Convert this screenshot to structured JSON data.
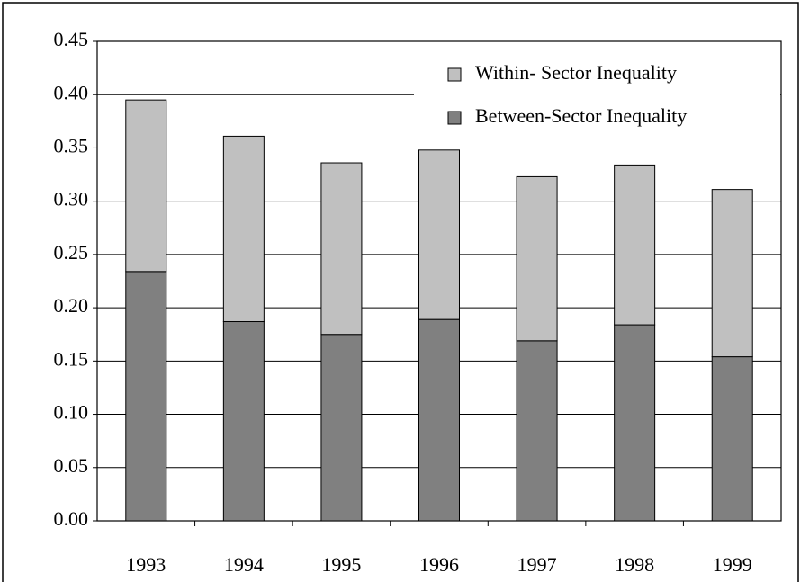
{
  "chart_data": {
    "type": "stacked_bar",
    "categories": [
      "1993",
      "1994",
      "1995",
      "1996",
      "1997",
      "1998",
      "1999"
    ],
    "series": [
      {
        "name": "Between-Sector Inequality",
        "color": "#808080",
        "values": [
          0.234,
          0.187,
          0.175,
          0.189,
          0.169,
          0.184,
          0.154
        ]
      },
      {
        "name": "Within- Sector Inequality",
        "color": "#c0c0c0",
        "values": [
          0.161,
          0.174,
          0.161,
          0.159,
          0.154,
          0.15,
          0.157
        ]
      }
    ],
    "ylim": [
      0,
      0.45
    ],
    "yticks": [
      {
        "value": 0,
        "label": "0.00"
      },
      {
        "value": 0.05,
        "label": "0.05"
      },
      {
        "value": 0.1,
        "label": "0.10"
      },
      {
        "value": 0.15,
        "label": "0.15"
      },
      {
        "value": 0.2,
        "label": "0.20"
      },
      {
        "value": 0.25,
        "label": "0.25"
      },
      {
        "value": 0.3,
        "label": "0.30"
      },
      {
        "value": 0.35,
        "label": "0.35"
      },
      {
        "value": 0.4,
        "label": "0.40"
      },
      {
        "value": 0.45,
        "label": "0.45"
      }
    ],
    "grid": true,
    "legend": "top-right"
  }
}
